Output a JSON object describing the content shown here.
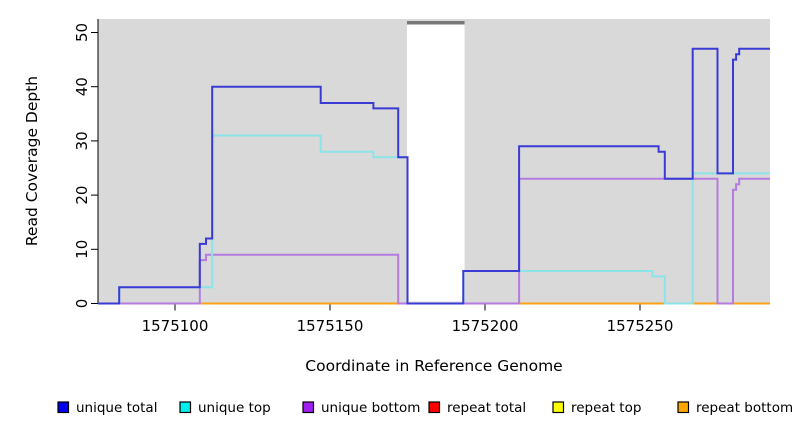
{
  "figure": {
    "panel_bg": "#d9d9d9",
    "outer_bg": "#ffffff",
    "axis_color": "#000000"
  },
  "chart_data": {
    "type": "line",
    "step_mode": "after",
    "title": "",
    "xlabel": "Coordinate in Reference Genome",
    "ylabel": "Read Coverage Depth",
    "xlim": [
      1575075,
      1575292
    ],
    "ylim": [
      0,
      52
    ],
    "x_ticks": [
      1575100,
      1575150,
      1575200,
      1575250
    ],
    "y_ticks": [
      0,
      10,
      20,
      30,
      40,
      50
    ],
    "grid": false,
    "legend_position": "bottom",
    "masked_region": {
      "start": 1575175,
      "end": 1575193.4,
      "fill": "#ffffff",
      "top_bar_color": "#787878"
    },
    "series": [
      {
        "name": "repeat total",
        "line_color": "#e03030",
        "legend_fill": "#ff0000",
        "start_value": 0,
        "steps": []
      },
      {
        "name": "repeat top",
        "line_color": "#f0f000",
        "legend_fill": "#ffff00",
        "start_value": 0,
        "steps": []
      },
      {
        "name": "repeat bottom",
        "line_color": "#ffa114",
        "legend_fill": "#ffa500",
        "start_value": 0,
        "steps": []
      },
      {
        "name": "unique bottom",
        "line_color": "#b57be0",
        "legend_fill": "#a020f0",
        "start_value": 0,
        "steps": [
          [
            1575108,
            8
          ],
          [
            1575110,
            9
          ],
          [
            1575172,
            0
          ],
          [
            1575211,
            23
          ],
          [
            1575275,
            0
          ],
          [
            1575280,
            21
          ],
          [
            1575281,
            22
          ],
          [
            1575282,
            23
          ]
        ]
      },
      {
        "name": "unique top",
        "line_color": "#8be4e8",
        "legend_fill": "#00eeee",
        "start_value": 0,
        "steps": [
          [
            1575082,
            3
          ],
          [
            1575112,
            31
          ],
          [
            1575147,
            28
          ],
          [
            1575164,
            27
          ],
          [
            1575175,
            0
          ],
          [
            1575193,
            6
          ],
          [
            1575254,
            5
          ],
          [
            1575258,
            0
          ],
          [
            1575267,
            24
          ]
        ]
      },
      {
        "name": "unique total",
        "line_color": "#3a3ad4",
        "legend_fill": "#0000ee",
        "start_value": 0,
        "steps": [
          [
            1575082,
            3
          ],
          [
            1575108,
            11
          ],
          [
            1575110,
            12
          ],
          [
            1575112,
            40
          ],
          [
            1575147,
            37
          ],
          [
            1575164,
            36
          ],
          [
            1575172,
            27
          ],
          [
            1575175,
            0
          ],
          [
            1575193,
            6
          ],
          [
            1575211,
            29
          ],
          [
            1575256,
            28
          ],
          [
            1575258,
            23
          ],
          [
            1575267,
            47
          ],
          [
            1575275,
            24
          ],
          [
            1575280,
            45
          ],
          [
            1575281,
            46
          ],
          [
            1575282,
            47
          ]
        ]
      }
    ]
  },
  "legend": {
    "items": [
      {
        "label": "unique total",
        "fill": "#0000ee"
      },
      {
        "label": "unique top",
        "fill": "#00eeee"
      },
      {
        "label": "unique bottom",
        "fill": "#a020f0"
      },
      {
        "label": "repeat total",
        "fill": "#ff0000"
      },
      {
        "label": "repeat top",
        "fill": "#ffff00"
      },
      {
        "label": "repeat bottom",
        "fill": "#ffa500"
      }
    ]
  }
}
